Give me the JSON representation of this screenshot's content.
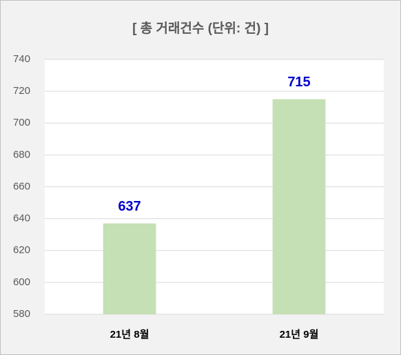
{
  "chart_data": {
    "type": "bar",
    "title": "[ 총 거래건수 (단위: 건) ]",
    "categories": [
      "21년 8월",
      "21년 9월"
    ],
    "values": [
      637,
      715
    ],
    "color": "#c5e0b4",
    "ylim": [
      580,
      740
    ],
    "yticks": [
      580,
      600,
      620,
      640,
      660,
      680,
      700,
      720,
      740
    ],
    "grid": true
  }
}
